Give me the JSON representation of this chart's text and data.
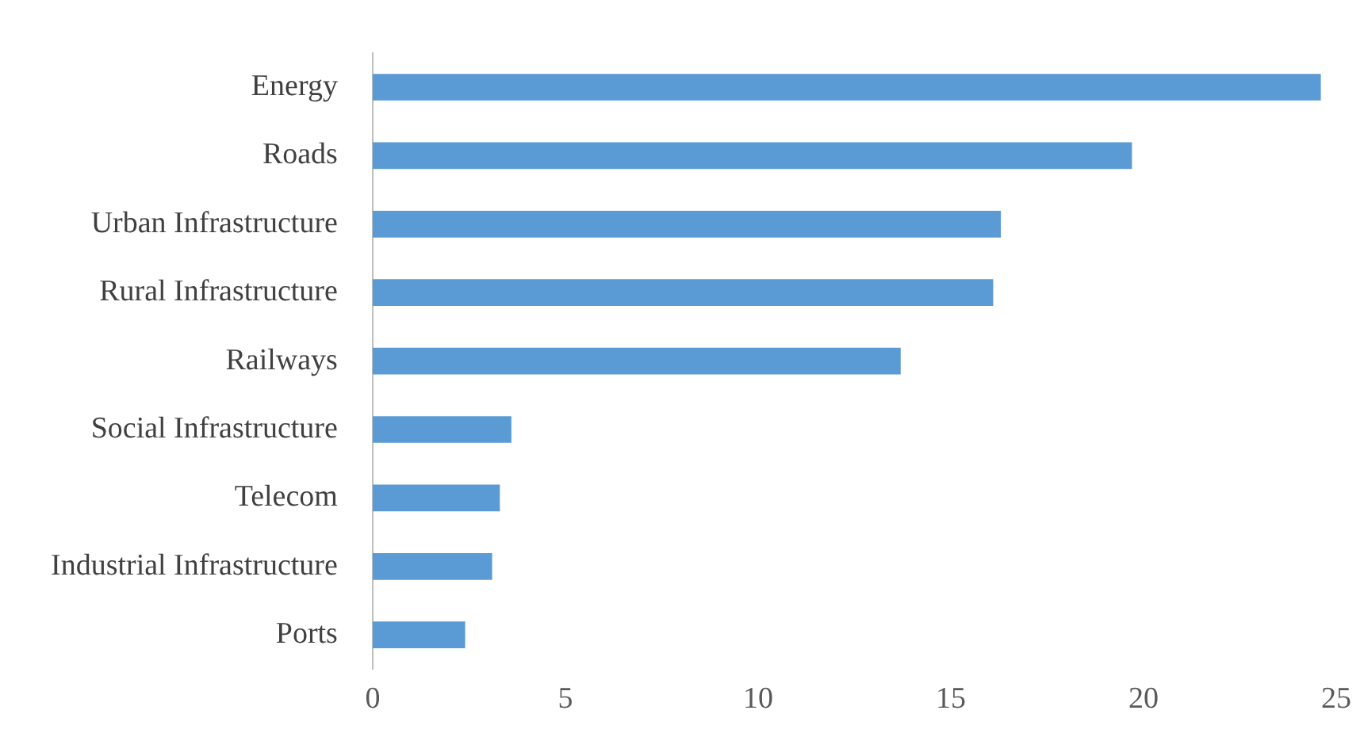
{
  "chart_data": {
    "type": "bar",
    "orientation": "horizontal",
    "categories": [
      "Energy",
      "Roads",
      "Urban Infrastructure",
      "Rural Infrastructure",
      "Railways",
      "Social Infrastructure",
      "Telecom",
      "Industrial Infrastructure",
      "Ports"
    ],
    "values": [
      24.6,
      19.7,
      16.3,
      16.1,
      13.7,
      3.6,
      3.3,
      3.1,
      2.4
    ],
    "color": "#5b9bd5",
    "xlim": [
      0,
      25
    ],
    "xticks": [
      0,
      5,
      10,
      15,
      20,
      25
    ],
    "grid": false,
    "legend": false
  }
}
